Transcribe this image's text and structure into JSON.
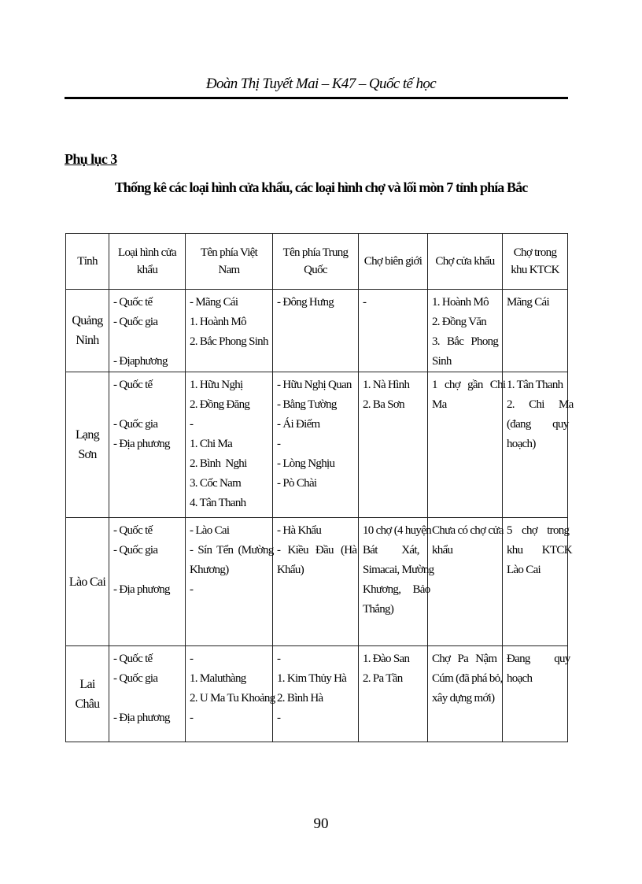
{
  "header": {
    "running_title": "Đoàn Thị Tuyết Mai – K47 – Quốc tế học"
  },
  "appendix_label": "Phụ lục 3",
  "title": "Thống kê các loại hình cửa khẩu, các loại hình chợ và lối mòn 7 tỉnh phía Bắc",
  "table": {
    "columns": [
      "Tỉnh",
      "Loại hình cửa khẩu",
      "Tên phía Việt Nam",
      "Tên phía Trung Quốc",
      "Chợ biên giới",
      "Chợ cửa khẩu",
      "Chợ trong khu KTCK"
    ],
    "rows": [
      {
        "province": "Quảng Ninh",
        "cells": [
          [
            "- Quốc tế",
            "- Quốc gia",
            "",
            "- Địaphương"
          ],
          [
            "- Mãng Cái",
            "1. Hoành Mô",
            "2. Bắc Phong Sinh"
          ],
          [
            "- Đông Hưng"
          ],
          [
            "-"
          ],
          [
            "1. Hoành Mô",
            "2. Đồng Văn",
            "3.   Bắc   Phong",
            "Sinh"
          ],
          [
            "Mãng Cái"
          ]
        ]
      },
      {
        "province": "Lạng Sơn",
        "cells": [
          [
            "- Quốc tế",
            "",
            "- Quốc gia",
            "- Địa phương"
          ],
          [
            "1. Hữu Nghị",
            "2. Đồng Đăng",
            "-",
            "1. Chi Ma",
            "2. Bình  Nghi",
            "3. Cốc Nam",
            "4. Tân Thanh"
          ],
          [
            "- Hữu Nghị Quan",
            "- Bằng Tường",
            "- Ái Điếm",
            "-",
            "- Lòng Nghịu",
            "- Pò Chài"
          ],
          [
            "1. Nà Hình",
            "2. Ba Sơn"
          ],
          [
            "1   chợ   gần   Chi",
            "Ma"
          ],
          [
            "1. Tân Thanh",
            "2.      Chi      Ma",
            "(đang         quy",
            "hoạch)"
          ]
        ]
      },
      {
        "province": "Lào Cai",
        "cells": [
          [
            "- Quốc tế",
            "- Quốc gia",
            "",
            "- Địa phương"
          ],
          [
            "- Lào Cai",
            "-  Sín  Tển  (Mường",
            "Khương)",
            "-"
          ],
          [
            "- Hà Khẩu",
            "-   Kiều   Đầu   (Hà",
            "Khẩu)"
          ],
          [
            "10 chợ (4 huyện",
            "Bát          Xát,",
            "Simacai, Mường",
            "Khương,     Bảo",
            "Thắng)"
          ],
          [
            "Chưa có chợ cửa",
            "khẩu"
          ],
          [
            "5    chợ    trong",
            "khu        KTCK",
            "Lào Cai"
          ]
        ]
      },
      {
        "province": "Lai Châu",
        "cells": [
          [
            "- Quốc tế",
            "- Quốc gia",
            "",
            "- Địa phương"
          ],
          [
            "-",
            "1. Maluthàng",
            "2. U Ma Tu Khoảng",
            "-"
          ],
          [
            "-",
            "1. Kim Thủy Hà",
            "2. Bình Hà",
            "-"
          ],
          [
            "1. Đào San",
            "2. Pa Tần"
          ],
          [
            "Chợ   Pa   Nậm",
            "Cúm (đã phá bỏ,",
            "xây dựng mới)"
          ],
          [
            "Đang          quy",
            "hoạch"
          ]
        ]
      }
    ]
  },
  "page_number": "90"
}
